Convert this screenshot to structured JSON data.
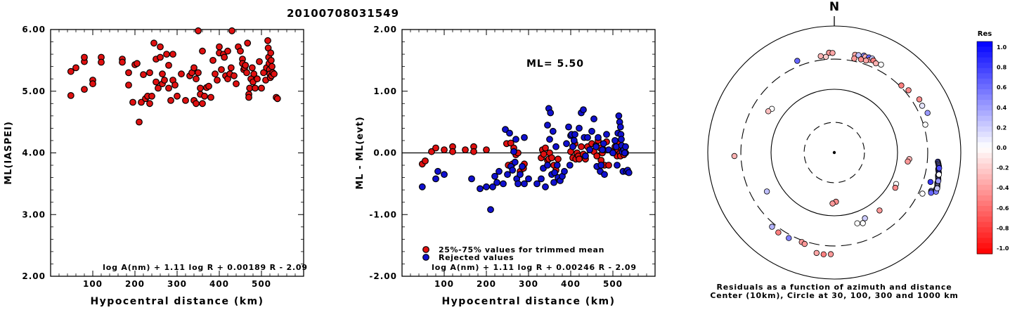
{
  "figure_title": "20100708031549",
  "chart_data": [
    {
      "type": "scatter",
      "id": "ml-vs-distance",
      "xlabel": "Hypocentral distance (km)",
      "ylabel": "ML(IASPEI)",
      "xlim": [
        0,
        600
      ],
      "ylim": [
        2.0,
        6.0
      ],
      "xticks": [
        100,
        200,
        300,
        400,
        500
      ],
      "yticks": [
        "2.00",
        "3.00",
        "4.00",
        "5.00",
        "6.00"
      ],
      "formula": "log A(nm) + 1.11 log R + 0.00189 R - 2.09",
      "color": "#e01010",
      "points": [
        [
          48,
          5.32
        ],
        [
          48,
          4.93
        ],
        [
          60,
          5.38
        ],
        [
          80,
          5.48
        ],
        [
          80,
          5.55
        ],
        [
          80,
          5.03
        ],
        [
          100,
          5.18
        ],
        [
          100,
          5.12
        ],
        [
          120,
          5.55
        ],
        [
          120,
          5.47
        ],
        [
          170,
          5.52
        ],
        [
          170,
          5.47
        ],
        [
          185,
          5.3
        ],
        [
          185,
          5.1
        ],
        [
          195,
          4.82
        ],
        [
          200,
          5.43
        ],
        [
          205,
          5.45
        ],
        [
          210,
          4.5
        ],
        [
          215,
          4.82
        ],
        [
          220,
          5.27
        ],
        [
          225,
          4.88
        ],
        [
          230,
          4.92
        ],
        [
          235,
          4.8
        ],
        [
          235,
          5.3
        ],
        [
          240,
          4.92
        ],
        [
          245,
          5.78
        ],
        [
          250,
          5.52
        ],
        [
          250,
          5.15
        ],
        [
          255,
          5.05
        ],
        [
          260,
          5.72
        ],
        [
          260,
          5.55
        ],
        [
          265,
          5.28
        ],
        [
          265,
          5.12
        ],
        [
          270,
          5.18
        ],
        [
          275,
          5.6
        ],
        [
          280,
          5.42
        ],
        [
          280,
          5.05
        ],
        [
          285,
          4.85
        ],
        [
          290,
          5.6
        ],
        [
          290,
          5.18
        ],
        [
          295,
          5.1
        ],
        [
          300,
          4.92
        ],
        [
          310,
          5.28
        ],
        [
          320,
          4.85
        ],
        [
          330,
          5.25
        ],
        [
          335,
          5.3
        ],
        [
          340,
          4.85
        ],
        [
          340,
          5.38
        ],
        [
          345,
          5.2
        ],
        [
          345,
          4.8
        ],
        [
          350,
          5.98
        ],
        [
          350,
          5.3
        ],
        [
          355,
          4.95
        ],
        [
          355,
          5.05
        ],
        [
          360,
          5.65
        ],
        [
          360,
          4.8
        ],
        [
          365,
          4.92
        ],
        [
          370,
          5.06
        ],
        [
          375,
          5.08
        ],
        [
          380,
          4.9
        ],
        [
          385,
          5.5
        ],
        [
          390,
          5.28
        ],
        [
          395,
          5.18
        ],
        [
          400,
          5.62
        ],
        [
          400,
          5.72
        ],
        [
          405,
          5.35
        ],
        [
          410,
          5.6
        ],
        [
          412,
          5.55
        ],
        [
          415,
          5.25
        ],
        [
          420,
          5.65
        ],
        [
          420,
          5.2
        ],
        [
          425,
          5.28
        ],
        [
          428,
          5.38
        ],
        [
          430,
          5.98
        ],
        [
          435,
          5.25
        ],
        [
          440,
          5.12
        ],
        [
          445,
          5.72
        ],
        [
          450,
          5.65
        ],
        [
          455,
          5.52
        ],
        [
          455,
          5.45
        ],
        [
          458,
          5.35
        ],
        [
          460,
          5.38
        ],
        [
          462,
          5.42
        ],
        [
          465,
          5.3
        ],
        [
          467,
          5.78
        ],
        [
          470,
          4.95
        ],
        [
          470,
          4.9
        ],
        [
          472,
          5.05
        ],
        [
          475,
          5.2
        ],
        [
          478,
          5.38
        ],
        [
          480,
          5.15
        ],
        [
          482,
          5.28
        ],
        [
          485,
          5.05
        ],
        [
          490,
          5.2
        ],
        [
          495,
          5.48
        ],
        [
          500,
          5.05
        ],
        [
          505,
          5.3
        ],
        [
          510,
          5.18
        ],
        [
          512,
          5.38
        ],
        [
          515,
          5.82
        ],
        [
          516,
          5.7
        ],
        [
          517,
          5.55
        ],
        [
          518,
          5.45
        ],
        [
          519,
          5.35
        ],
        [
          520,
          5.28
        ],
        [
          521,
          5.22
        ],
        [
          522,
          5.62
        ],
        [
          523,
          5.5
        ],
        [
          524,
          5.25
        ],
        [
          525,
          5.4
        ],
        [
          527,
          5.3
        ],
        [
          530,
          5.28
        ],
        [
          535,
          4.9
        ],
        [
          538,
          4.88
        ]
      ]
    },
    {
      "type": "scatter",
      "id": "residual-vs-distance",
      "xlabel": "Hypocentral distance (km)",
      "ylabel": "ML - ML(evt)",
      "xlim": [
        0,
        600
      ],
      "ylim": [
        -2.0,
        2.0
      ],
      "xticks": [
        100,
        200,
        300,
        400,
        500
      ],
      "yticks": [
        "-2.00",
        "-1.00",
        "0.00",
        "1.00",
        "2.00"
      ],
      "ml_label": "ML= 5.50",
      "reference_line": 0.0,
      "formula": "log A(nm) + 1.11 log R + 0.00246 R - 2.09",
      "legend": {
        "trimmed": "25%-75% values for trimmed mean",
        "rejected": "Rejected values"
      },
      "colors": {
        "trimmed": "#e01010",
        "rejected": "#1010d0"
      },
      "trimmed_points": [
        [
          48,
          -0.18
        ],
        [
          55,
          -0.13
        ],
        [
          70,
          0.02
        ],
        [
          80,
          0.08
        ],
        [
          100,
          0.05
        ],
        [
          120,
          0.1
        ],
        [
          120,
          0.02
        ],
        [
          150,
          0.05
        ],
        [
          170,
          0.1
        ],
        [
          170,
          0.02
        ],
        [
          200,
          0.05
        ],
        [
          248,
          0.15
        ],
        [
          252,
          -0.2
        ],
        [
          258,
          0.16
        ],
        [
          262,
          -0.18
        ],
        [
          265,
          0.08
        ],
        [
          270,
          -0.03
        ],
        [
          275,
          0.0
        ],
        [
          280,
          -0.3
        ],
        [
          288,
          -0.25
        ],
        [
          290,
          -0.18
        ],
        [
          330,
          -0.08
        ],
        [
          333,
          0.05
        ],
        [
          336,
          -0.02
        ],
        [
          340,
          0.08
        ],
        [
          345,
          -0.12
        ],
        [
          348,
          -0.1
        ],
        [
          350,
          0.0
        ],
        [
          355,
          -0.08
        ],
        [
          360,
          -0.2
        ],
        [
          365,
          -0.28
        ],
        [
          370,
          -0.1
        ],
        [
          400,
          0.02
        ],
        [
          405,
          -0.08
        ],
        [
          410,
          0.15
        ],
        [
          412,
          -0.1
        ],
        [
          415,
          0.0
        ],
        [
          418,
          -0.05
        ],
        [
          420,
          -0.1
        ],
        [
          425,
          0.1
        ],
        [
          430,
          -0.02
        ],
        [
          435,
          -0.1
        ],
        [
          440,
          0.1
        ],
        [
          450,
          0.15
        ],
        [
          455,
          0.02
        ],
        [
          460,
          0.12
        ],
        [
          462,
          -0.05
        ],
        [
          465,
          0.2
        ],
        [
          470,
          0.08
        ],
        [
          472,
          -0.12
        ],
        [
          475,
          0.0
        ],
        [
          478,
          0.05
        ],
        [
          480,
          -0.2
        ],
        [
          485,
          0.18
        ],
        [
          490,
          -0.2
        ],
        [
          500,
          0.02
        ],
        [
          505,
          0.1
        ],
        [
          510,
          -0.05
        ],
        [
          512,
          0.05
        ],
        [
          515,
          0.15
        ],
        [
          517,
          0.0
        ],
        [
          518,
          -0.05
        ],
        [
          520,
          0.08
        ],
        [
          522,
          0.02
        ],
        [
          524,
          0.05
        ],
        [
          526,
          -0.03
        ],
        [
          528,
          0.08
        ],
        [
          530,
          0.0
        ]
      ],
      "rejected_points": [
        [
          48,
          -0.55
        ],
        [
          80,
          -0.42
        ],
        [
          85,
          -0.3
        ],
        [
          100,
          -0.35
        ],
        [
          165,
          -0.42
        ],
        [
          185,
          -0.58
        ],
        [
          200,
          -0.55
        ],
        [
          210,
          -0.92
        ],
        [
          215,
          -0.55
        ],
        [
          220,
          -0.38
        ],
        [
          225,
          -0.48
        ],
        [
          230,
          -0.3
        ],
        [
          240,
          -0.5
        ],
        [
          245,
          0.38
        ],
        [
          250,
          -0.35
        ],
        [
          255,
          0.32
        ],
        [
          258,
          -0.22
        ],
        [
          262,
          -0.28
        ],
        [
          265,
          0.02
        ],
        [
          268,
          -0.15
        ],
        [
          270,
          0.22
        ],
        [
          272,
          -0.42
        ],
        [
          275,
          -0.5
        ],
        [
          280,
          -0.35
        ],
        [
          285,
          -0.22
        ],
        [
          290,
          -0.5
        ],
        [
          290,
          0.25
        ],
        [
          300,
          -0.42
        ],
        [
          320,
          -0.5
        ],
        [
          330,
          -0.42
        ],
        [
          335,
          -0.25
        ],
        [
          340,
          -0.55
        ],
        [
          345,
          -0.2
        ],
        [
          345,
          0.45
        ],
        [
          348,
          0.72
        ],
        [
          350,
          0.22
        ],
        [
          352,
          0.65
        ],
        [
          355,
          -0.35
        ],
        [
          358,
          0.35
        ],
        [
          360,
          -0.48
        ],
        [
          362,
          -0.32
        ],
        [
          365,
          0.1
        ],
        [
          368,
          -0.2
        ],
        [
          370,
          -0.4
        ],
        [
          375,
          -0.45
        ],
        [
          380,
          -0.38
        ],
        [
          385,
          -0.3
        ],
        [
          390,
          0.15
        ],
        [
          395,
          0.42
        ],
        [
          398,
          -0.2
        ],
        [
          400,
          0.28
        ],
        [
          402,
          0.3
        ],
        [
          405,
          0.1
        ],
        [
          408,
          0.2
        ],
        [
          410,
          0.3
        ],
        [
          420,
          0.4
        ],
        [
          425,
          0.65
        ],
        [
          430,
          0.7
        ],
        [
          432,
          0.25
        ],
        [
          435,
          -0.05
        ],
        [
          440,
          0.25
        ],
        [
          445,
          0.05
        ],
        [
          450,
          0.35
        ],
        [
          455,
          0.55
        ],
        [
          460,
          0.1
        ],
        [
          462,
          -0.22
        ],
        [
          465,
          0.25
        ],
        [
          470,
          -0.3
        ],
        [
          472,
          -0.2
        ],
        [
          475,
          0.05
        ],
        [
          478,
          0.15
        ],
        [
          480,
          -0.35
        ],
        [
          485,
          0.3
        ],
        [
          490,
          0.05
        ],
        [
          500,
          0.0
        ],
        [
          505,
          0.2
        ],
        [
          508,
          0.1
        ],
        [
          510,
          -0.2
        ],
        [
          512,
          0.32
        ],
        [
          514,
          0.6
        ],
        [
          516,
          0.5
        ],
        [
          518,
          0.42
        ],
        [
          519,
          0.3
        ],
        [
          520,
          0.22
        ],
        [
          521,
          0.12
        ],
        [
          522,
          0.02
        ],
        [
          524,
          -0.3
        ],
        [
          526,
          0.05
        ],
        [
          528,
          0.0
        ],
        [
          530,
          0.1
        ],
        [
          532,
          -0.3
        ],
        [
          535,
          -0.28
        ],
        [
          538,
          -0.32
        ]
      ]
    },
    {
      "type": "scatter",
      "id": "residual-azimuth-map",
      "north_label": "N",
      "caption_line1": "Residuals as a function of azimuth and distance",
      "caption_line2": "Center (10km), Circle at 30, 100, 300 and 1000 km",
      "rings_km": [
        30,
        100,
        300,
        1000
      ],
      "colorbar": {
        "title": "Res",
        "min": -1.0,
        "max": 1.0,
        "tick_labels": [
          "1.0",
          "0.8",
          "0.6",
          "0.4",
          "0.2",
          "0.0",
          "-0.2",
          "-0.4",
          "-0.6",
          "-0.8",
          "-1.0"
        ],
        "positive_color": "#0000ff",
        "negative_color": "#ff0000"
      },
      "stations_azimuth_distance_res": [
        [
          12,
          380,
          -0.35
        ],
        [
          14,
          385,
          0.25
        ],
        [
          17,
          400,
          0.45
        ],
        [
          18,
          390,
          -0.3
        ],
        [
          20,
          398,
          0.6
        ],
        [
          21,
          370,
          -0.4
        ],
        [
          22,
          400,
          0.2
        ],
        [
          23,
          380,
          -0.5
        ],
        [
          16,
          340,
          -0.45
        ],
        [
          19,
          345,
          -0.35
        ],
        [
          25,
          360,
          -0.3
        ],
        [
          28,
          375,
          0.0
        ],
        [
          12,
          330,
          -0.4
        ],
        [
          357,
          380,
          -0.4
        ],
        [
          359,
          375,
          -0.35
        ],
        [
          352,
          345,
          -0.3
        ],
        [
          355,
          330,
          -0.2
        ],
        [
          338,
          365,
          0.6
        ],
        [
          45,
          315,
          -0.5
        ],
        [
          50,
          340,
          -0.45
        ],
        [
          58,
          385,
          -0.45
        ],
        [
          62,
          375,
          0.1
        ],
        [
          67,
          400,
          0.4
        ],
        [
          73,
          320,
          0.0
        ],
        [
          107,
          390,
          0.8
        ],
        [
          115,
          345,
          0.0
        ],
        [
          305,
          160,
          0.0
        ],
        [
          302,
          170,
          -0.25
        ],
        [
          95,
          155,
          -0.3
        ],
        [
          97,
          148,
          -0.4
        ],
        [
          117,
          125,
          0.0
        ],
        [
          120,
          130,
          -0.45
        ],
        [
          142,
          145,
          -0.4
        ],
        [
          155,
          140,
          0.2
        ],
        [
          162,
          150,
          0.0
        ],
        [
          158,
          160,
          0.0
        ],
        [
          178,
          60,
          -0.45
        ],
        [
          182,
          64,
          -0.4
        ],
        [
          220,
          340,
          0.3
        ],
        [
          215,
          348,
          -0.5
        ],
        [
          208,
          340,
          0.5
        ],
        [
          200,
          320,
          -0.4
        ],
        [
          198,
          330,
          -0.4
        ],
        [
          190,
          410,
          -0.35
        ],
        [
          186,
          415,
          -0.5
        ],
        [
          182,
          405,
          -0.4
        ],
        [
          240,
          170,
          0.25
        ],
        [
          268,
          380,
          -0.3
        ]
      ],
      "cluster_east_res": [
        0.7,
        0.8,
        0.6,
        0.5,
        0.7,
        0.4,
        0.8,
        0.6,
        0.5,
        0.9,
        0.7,
        0.3,
        0.6,
        0.0,
        0.0,
        0.1,
        0.8,
        0.5,
        0.4,
        0.6,
        0.7,
        0.2,
        0.5,
        0.8,
        0.0,
        0.0,
        0.6,
        0.3,
        0.7,
        0.5,
        0.9,
        0.4,
        0.6,
        0.0,
        0.2,
        0.7
      ]
    }
  ]
}
